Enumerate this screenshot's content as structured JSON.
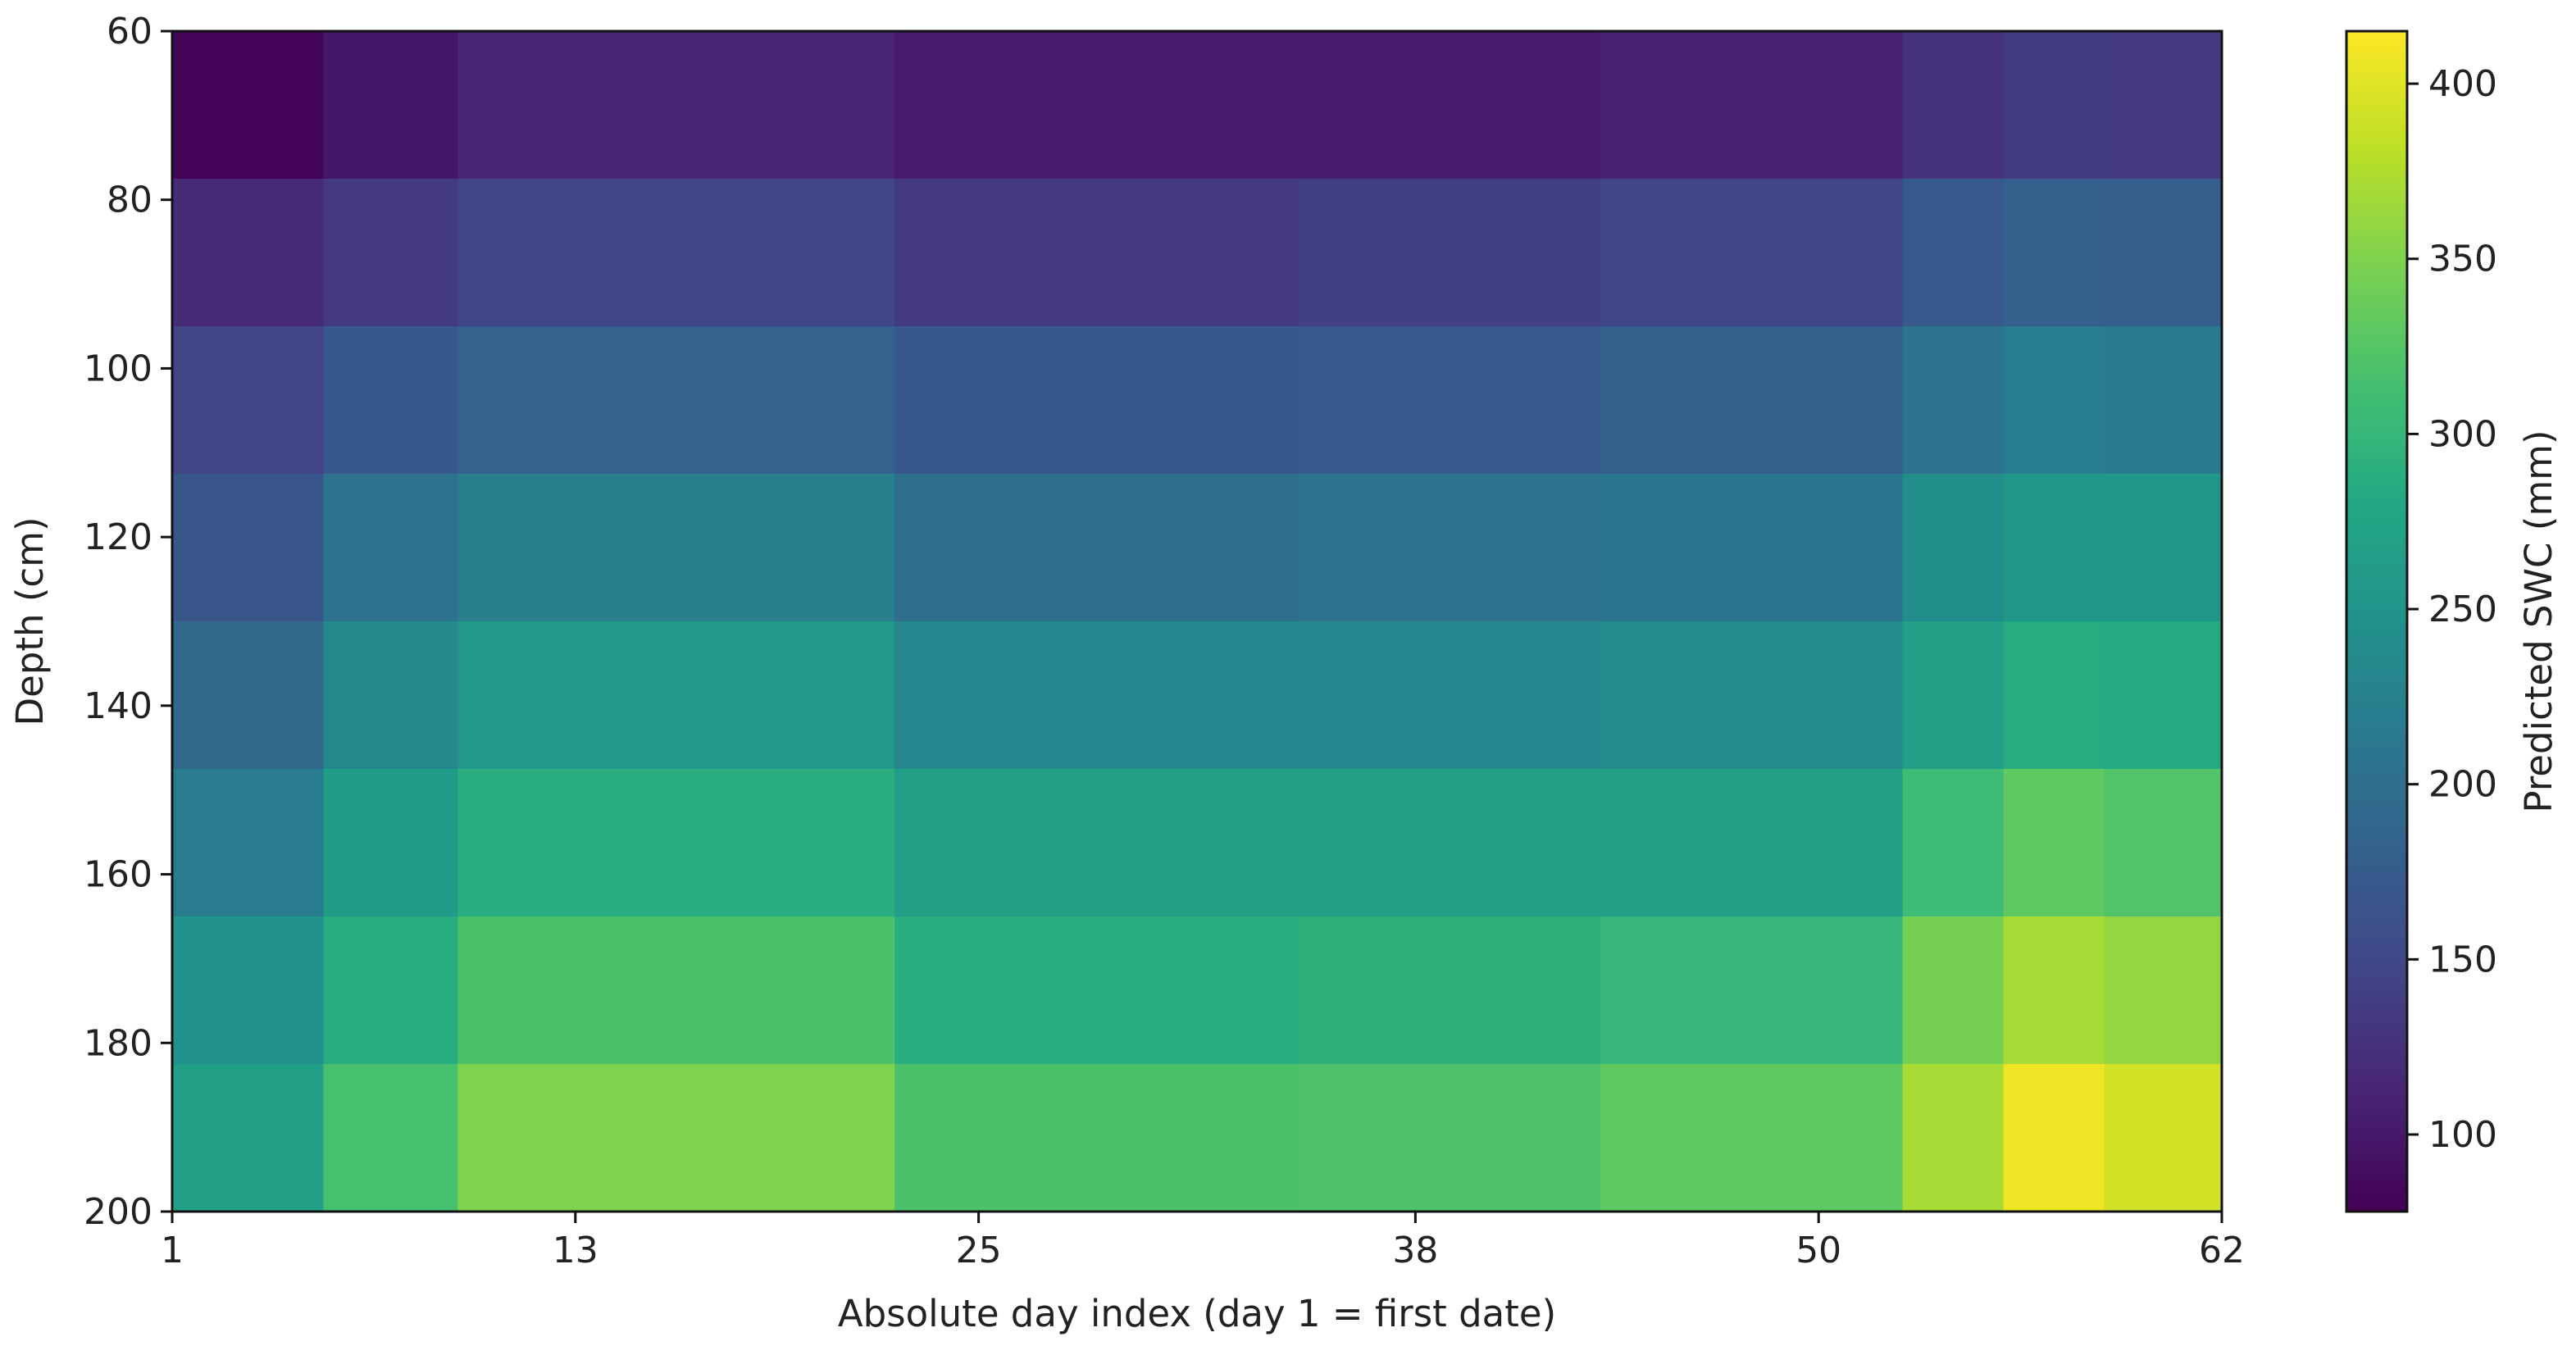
{
  "chart_data": {
    "type": "heatmap",
    "title": "",
    "xlabel": "Absolute day index (day 1 = first date)",
    "ylabel": "Depth (cm)",
    "colorbar_label": "Predicted SWC (mm)",
    "colormap": "viridis",
    "x_ticks": [
      1,
      13,
      25,
      38,
      50,
      62
    ],
    "y_ticks": [
      60,
      80,
      100,
      120,
      140,
      160,
      180,
      200
    ],
    "colorbar_ticks": [
      100,
      150,
      200,
      250,
      300,
      350,
      400
    ],
    "xlim": [
      1,
      62
    ],
    "ylim": [
      200,
      60
    ],
    "colorbar_range": [
      78,
      415
    ],
    "depth_bands_cm": [
      [
        60,
        77.5
      ],
      [
        77.5,
        95
      ],
      [
        95,
        112.5
      ],
      [
        112.5,
        130
      ],
      [
        130,
        147.5
      ],
      [
        147.5,
        165
      ],
      [
        165,
        182.5
      ],
      [
        182.5,
        200
      ]
    ],
    "segments": [
      {
        "days": [
          1,
          5
        ],
        "values": [
          82,
          118,
          145,
          168,
          192,
          218,
          246,
          268
        ]
      },
      {
        "days": [
          6,
          9
        ],
        "values": [
          98,
          135,
          170,
          205,
          235,
          262,
          285,
          315
        ]
      },
      {
        "days": [
          10,
          22
        ],
        "values": [
          112,
          148,
          182,
          222,
          258,
          288,
          318,
          350
        ]
      },
      {
        "days": [
          23,
          34
        ],
        "values": [
          102,
          135,
          170,
          200,
          232,
          268,
          288,
          318
        ]
      },
      {
        "days": [
          35,
          43
        ],
        "values": [
          104,
          140,
          172,
          205,
          232,
          268,
          292,
          320
        ]
      },
      {
        "days": [
          44,
          52
        ],
        "values": [
          110,
          148,
          180,
          210,
          238,
          268,
          300,
          330
        ]
      },
      {
        "days": [
          53,
          55
        ],
        "values": [
          128,
          172,
          205,
          242,
          268,
          308,
          345,
          370
        ]
      },
      {
        "days": [
          56,
          58
        ],
        "values": [
          136,
          180,
          220,
          255,
          285,
          330,
          370,
          408
        ]
      },
      {
        "days": [
          59,
          62
        ],
        "values": [
          135,
          178,
          215,
          255,
          282,
          322,
          360,
          392
        ]
      }
    ]
  }
}
